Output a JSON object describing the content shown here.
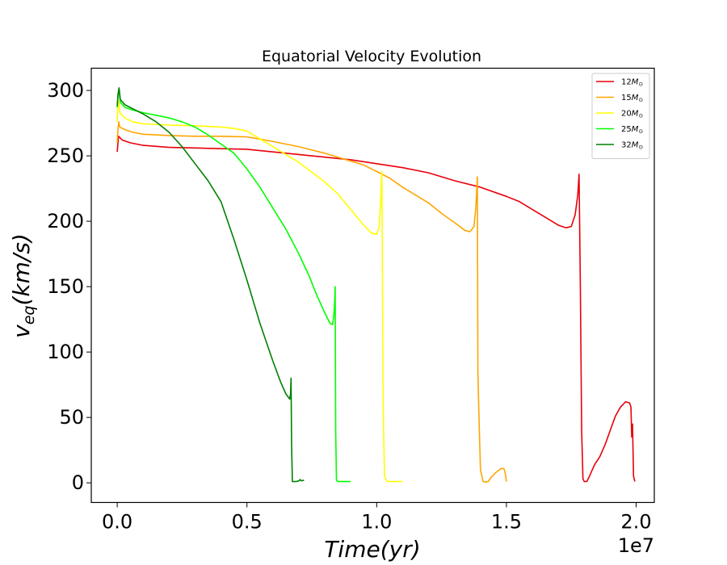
{
  "chart_data": {
    "type": "line",
    "title": "Equatorial Velocity Evolution",
    "xlabel": "Time(yr)",
    "ylabel_main": "v",
    "ylabel_sub": "eq",
    "ylabel_unit": "(km/s)",
    "x_offset_label": "1e7",
    "x_scale": 10000000,
    "xlim": [
      -0.1,
      2.07
    ],
    "ylim": [
      -15,
      317
    ],
    "xticks": [
      0.0,
      0.5,
      1.0,
      1.5,
      2.0
    ],
    "xtick_labels": [
      "0.0",
      "0.5",
      "1.0",
      "1.5",
      "2.0"
    ],
    "yticks": [
      0,
      50,
      100,
      150,
      200,
      250,
      300
    ],
    "ytick_labels": [
      "0",
      "50",
      "100",
      "150",
      "200",
      "250",
      "300"
    ],
    "grid": false,
    "legend_position": "top-right",
    "series": [
      {
        "name": "12M",
        "name_sub": "⊙",
        "color": "#e8000b",
        "points": [
          [
            0.0,
            253
          ],
          [
            0.002,
            258
          ],
          [
            0.005,
            265
          ],
          [
            0.02,
            262
          ],
          [
            0.05,
            260
          ],
          [
            0.1,
            258
          ],
          [
            0.2,
            256.5
          ],
          [
            0.3,
            256
          ],
          [
            0.4,
            255.5
          ],
          [
            0.5,
            255
          ],
          [
            0.6,
            253
          ],
          [
            0.7,
            251
          ],
          [
            0.8,
            249
          ],
          [
            0.9,
            247
          ],
          [
            1.0,
            244
          ],
          [
            1.1,
            241
          ],
          [
            1.2,
            237
          ],
          [
            1.3,
            231
          ],
          [
            1.4,
            226
          ],
          [
            1.5,
            219
          ],
          [
            1.55,
            215
          ],
          [
            1.6,
            209
          ],
          [
            1.65,
            203
          ],
          [
            1.7,
            197
          ],
          [
            1.73,
            195
          ],
          [
            1.75,
            196
          ],
          [
            1.765,
            205
          ],
          [
            1.775,
            220
          ],
          [
            1.78,
            236
          ],
          [
            1.785,
            150
          ],
          [
            1.79,
            40
          ],
          [
            1.795,
            3
          ],
          [
            1.8,
            1
          ],
          [
            1.81,
            1
          ],
          [
            1.82,
            5
          ],
          [
            1.84,
            14
          ],
          [
            1.86,
            20
          ],
          [
            1.88,
            29
          ],
          [
            1.9,
            40
          ],
          [
            1.92,
            51
          ],
          [
            1.94,
            58
          ],
          [
            1.96,
            62
          ],
          [
            1.975,
            61
          ],
          [
            1.98,
            58
          ],
          [
            1.983,
            35
          ],
          [
            1.986,
            45
          ],
          [
            1.99,
            5
          ],
          [
            1.995,
            1
          ]
        ]
      },
      {
        "name": "15M",
        "name_sub": "⊙",
        "color": "#ffa500",
        "points": [
          [
            0.0,
            260
          ],
          [
            0.002,
            268
          ],
          [
            0.006,
            276
          ],
          [
            0.01,
            272
          ],
          [
            0.03,
            270
          ],
          [
            0.06,
            268
          ],
          [
            0.1,
            266.5
          ],
          [
            0.2,
            265.5
          ],
          [
            0.3,
            265
          ],
          [
            0.4,
            265
          ],
          [
            0.5,
            264.5
          ],
          [
            0.6,
            261
          ],
          [
            0.7,
            257
          ],
          [
            0.8,
            252
          ],
          [
            0.9,
            246
          ],
          [
            0.95,
            243
          ],
          [
            1.0,
            238
          ],
          [
            1.05,
            233
          ],
          [
            1.1,
            226
          ],
          [
            1.15,
            220
          ],
          [
            1.2,
            214
          ],
          [
            1.25,
            206
          ],
          [
            1.3,
            199
          ],
          [
            1.34,
            193
          ],
          [
            1.36,
            192
          ],
          [
            1.375,
            196
          ],
          [
            1.382,
            210
          ],
          [
            1.388,
            234
          ],
          [
            1.39,
            85
          ],
          [
            1.395,
            45
          ],
          [
            1.4,
            10
          ],
          [
            1.41,
            1
          ],
          [
            1.42,
            0.5
          ],
          [
            1.43,
            1
          ],
          [
            1.44,
            4
          ],
          [
            1.46,
            8
          ],
          [
            1.48,
            11
          ],
          [
            1.49,
            11
          ],
          [
            1.495,
            8
          ],
          [
            1.5,
            1
          ]
        ]
      },
      {
        "name": "20M",
        "name_sub": "⊙",
        "color": "#ffff00",
        "points": [
          [
            0.0,
            276
          ],
          [
            0.002,
            285
          ],
          [
            0.006,
            292
          ],
          [
            0.01,
            283
          ],
          [
            0.03,
            279
          ],
          [
            0.06,
            276
          ],
          [
            0.1,
            274.5
          ],
          [
            0.2,
            273.5
          ],
          [
            0.3,
            273
          ],
          [
            0.4,
            272
          ],
          [
            0.45,
            271
          ],
          [
            0.5,
            269
          ],
          [
            0.55,
            263
          ],
          [
            0.6,
            257
          ],
          [
            0.7,
            245
          ],
          [
            0.8,
            230
          ],
          [
            0.85,
            221
          ],
          [
            0.9,
            209
          ],
          [
            0.95,
            197
          ],
          [
            0.98,
            191
          ],
          [
            1.0,
            190
          ],
          [
            1.01,
            196
          ],
          [
            1.015,
            215
          ],
          [
            1.02,
            238
          ],
          [
            1.025,
            60
          ],
          [
            1.03,
            5
          ],
          [
            1.04,
            1
          ],
          [
            1.06,
            1
          ],
          [
            1.08,
            1
          ],
          [
            1.1,
            1
          ]
        ]
      },
      {
        "name": "25M",
        "name_sub": "⊙",
        "color": "#00ff00",
        "points": [
          [
            0.0,
            287
          ],
          [
            0.003,
            296
          ],
          [
            0.007,
            300
          ],
          [
            0.012,
            291
          ],
          [
            0.03,
            287
          ],
          [
            0.06,
            285
          ],
          [
            0.1,
            283
          ],
          [
            0.15,
            281
          ],
          [
            0.2,
            279
          ],
          [
            0.25,
            276
          ],
          [
            0.3,
            272
          ],
          [
            0.35,
            266
          ],
          [
            0.4,
            259
          ],
          [
            0.45,
            252
          ],
          [
            0.5,
            240
          ],
          [
            0.55,
            226
          ],
          [
            0.6,
            210
          ],
          [
            0.65,
            194
          ],
          [
            0.7,
            175
          ],
          [
            0.74,
            158
          ],
          [
            0.77,
            143
          ],
          [
            0.8,
            130
          ],
          [
            0.82,
            122
          ],
          [
            0.83,
            121
          ],
          [
            0.835,
            128
          ],
          [
            0.838,
            138
          ],
          [
            0.84,
            150
          ],
          [
            0.842,
            40
          ],
          [
            0.845,
            2
          ],
          [
            0.85,
            1
          ],
          [
            0.87,
            1
          ],
          [
            0.9,
            1
          ]
        ]
      },
      {
        "name": "32M",
        "name_sub": "⊙",
        "color": "#008000",
        "points": [
          [
            0.0,
            288
          ],
          [
            0.003,
            297
          ],
          [
            0.007,
            302
          ],
          [
            0.012,
            293
          ],
          [
            0.03,
            289
          ],
          [
            0.06,
            286
          ],
          [
            0.1,
            282
          ],
          [
            0.15,
            276
          ],
          [
            0.2,
            268
          ],
          [
            0.25,
            257
          ],
          [
            0.3,
            244
          ],
          [
            0.35,
            231
          ],
          [
            0.4,
            215
          ],
          [
            0.45,
            186
          ],
          [
            0.5,
            155
          ],
          [
            0.55,
            122
          ],
          [
            0.6,
            93
          ],
          [
            0.63,
            77
          ],
          [
            0.65,
            68
          ],
          [
            0.665,
            64
          ],
          [
            0.668,
            68
          ],
          [
            0.67,
            80
          ],
          [
            0.672,
            30
          ],
          [
            0.675,
            1
          ],
          [
            0.69,
            1
          ],
          [
            0.7,
            1.5
          ],
          [
            0.705,
            2.5
          ],
          [
            0.71,
            1.5
          ],
          [
            0.72,
            2
          ]
        ]
      }
    ]
  }
}
